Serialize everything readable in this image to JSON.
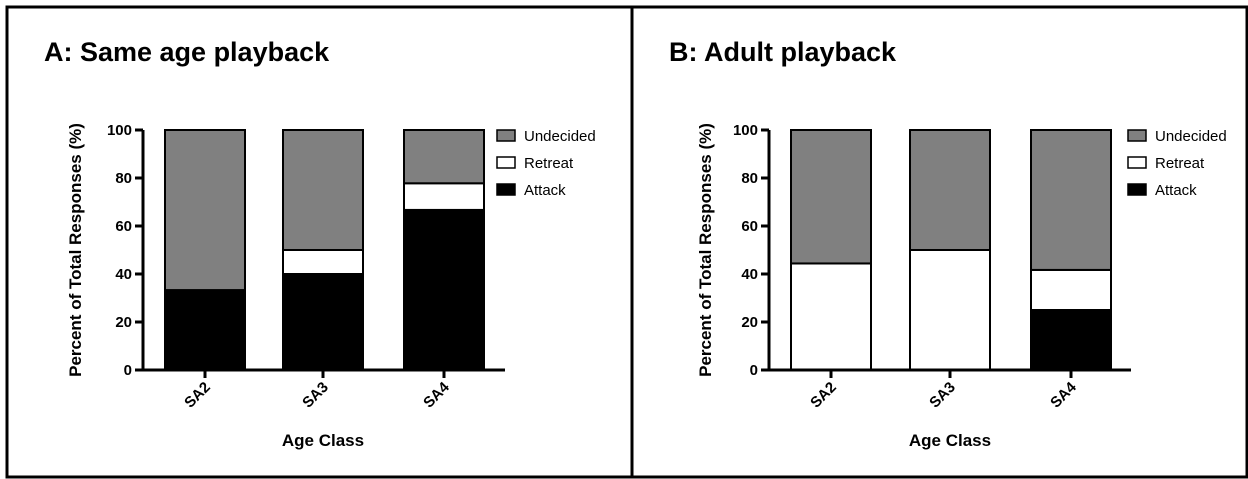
{
  "colors": {
    "Undecided": "#808080",
    "Retreat": "#ffffff",
    "Attack": "#000000",
    "frame": "#000000"
  },
  "chart_data": [
    {
      "type": "bar",
      "stacked": true,
      "title": "A: Same age playback",
      "xlabel": "Age Class",
      "ylabel": "Percent of Total Responses (%)",
      "ylim": [
        0,
        100
      ],
      "yticks": [
        "0",
        "20",
        "40",
        "60",
        "80",
        "100"
      ],
      "categories": [
        "SA2",
        "SA3",
        "SA4"
      ],
      "legend": {
        "position": "right",
        "entries": [
          "Undecided",
          "Retreat",
          "Attack"
        ]
      },
      "series": [
        {
          "name": "Attack",
          "values": [
            33.3,
            40,
            66.7
          ]
        },
        {
          "name": "Retreat",
          "values": [
            0,
            10,
            11.1
          ]
        },
        {
          "name": "Undecided",
          "values": [
            66.7,
            50,
            22.2
          ]
        }
      ]
    },
    {
      "type": "bar",
      "stacked": true,
      "title": "B: Adult playback",
      "xlabel": "Age Class",
      "ylabel": "Percent of Total Responses (%)",
      "ylim": [
        0,
        100
      ],
      "yticks": [
        "0",
        "20",
        "40",
        "60",
        "80",
        "100"
      ],
      "categories": [
        "SA2",
        "SA3",
        "SA4"
      ],
      "legend": {
        "position": "right",
        "entries": [
          "Undecided",
          "Retreat",
          "Attack"
        ]
      },
      "series": [
        {
          "name": "Attack",
          "values": [
            0,
            0,
            25
          ]
        },
        {
          "name": "Retreat",
          "values": [
            44.4,
            50,
            16.7
          ]
        },
        {
          "name": "Undecided",
          "values": [
            55.6,
            50,
            58.3
          ]
        }
      ]
    }
  ]
}
